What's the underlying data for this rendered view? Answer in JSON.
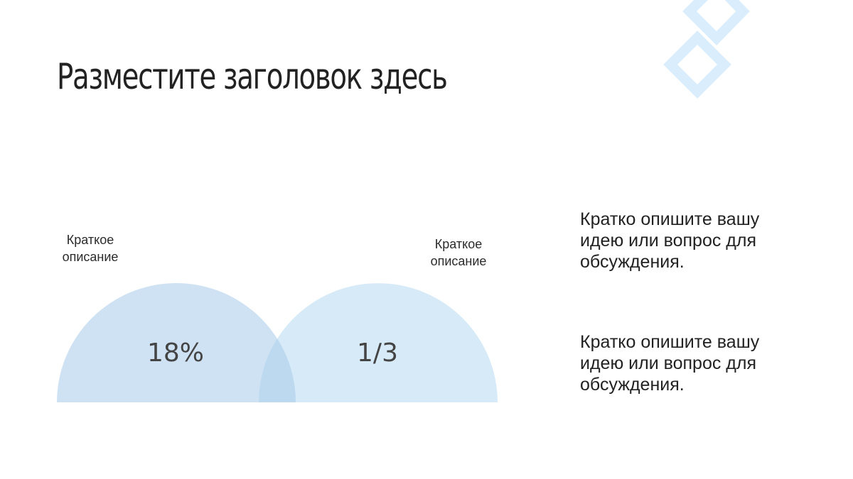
{
  "slide": {
    "title": "Разместите заголовок здесь",
    "left_label": "Краткое\nописание",
    "right_label": "Краткое\nописание",
    "stats": {
      "left_value": "18%",
      "right_value": "1/3"
    },
    "descriptions": [
      "Кратко опишите вашу\nидею или вопрос для\nобсуждения.",
      "Кратко опишите вашу\nидею или вопрос для\nобсуждения."
    ]
  },
  "colors": {
    "left_semicircle": "#cfe2f3",
    "right_semicircle": "#d7eaf8",
    "overlap": "#bcd9ef",
    "diamond_outline": "#d9edfc"
  }
}
